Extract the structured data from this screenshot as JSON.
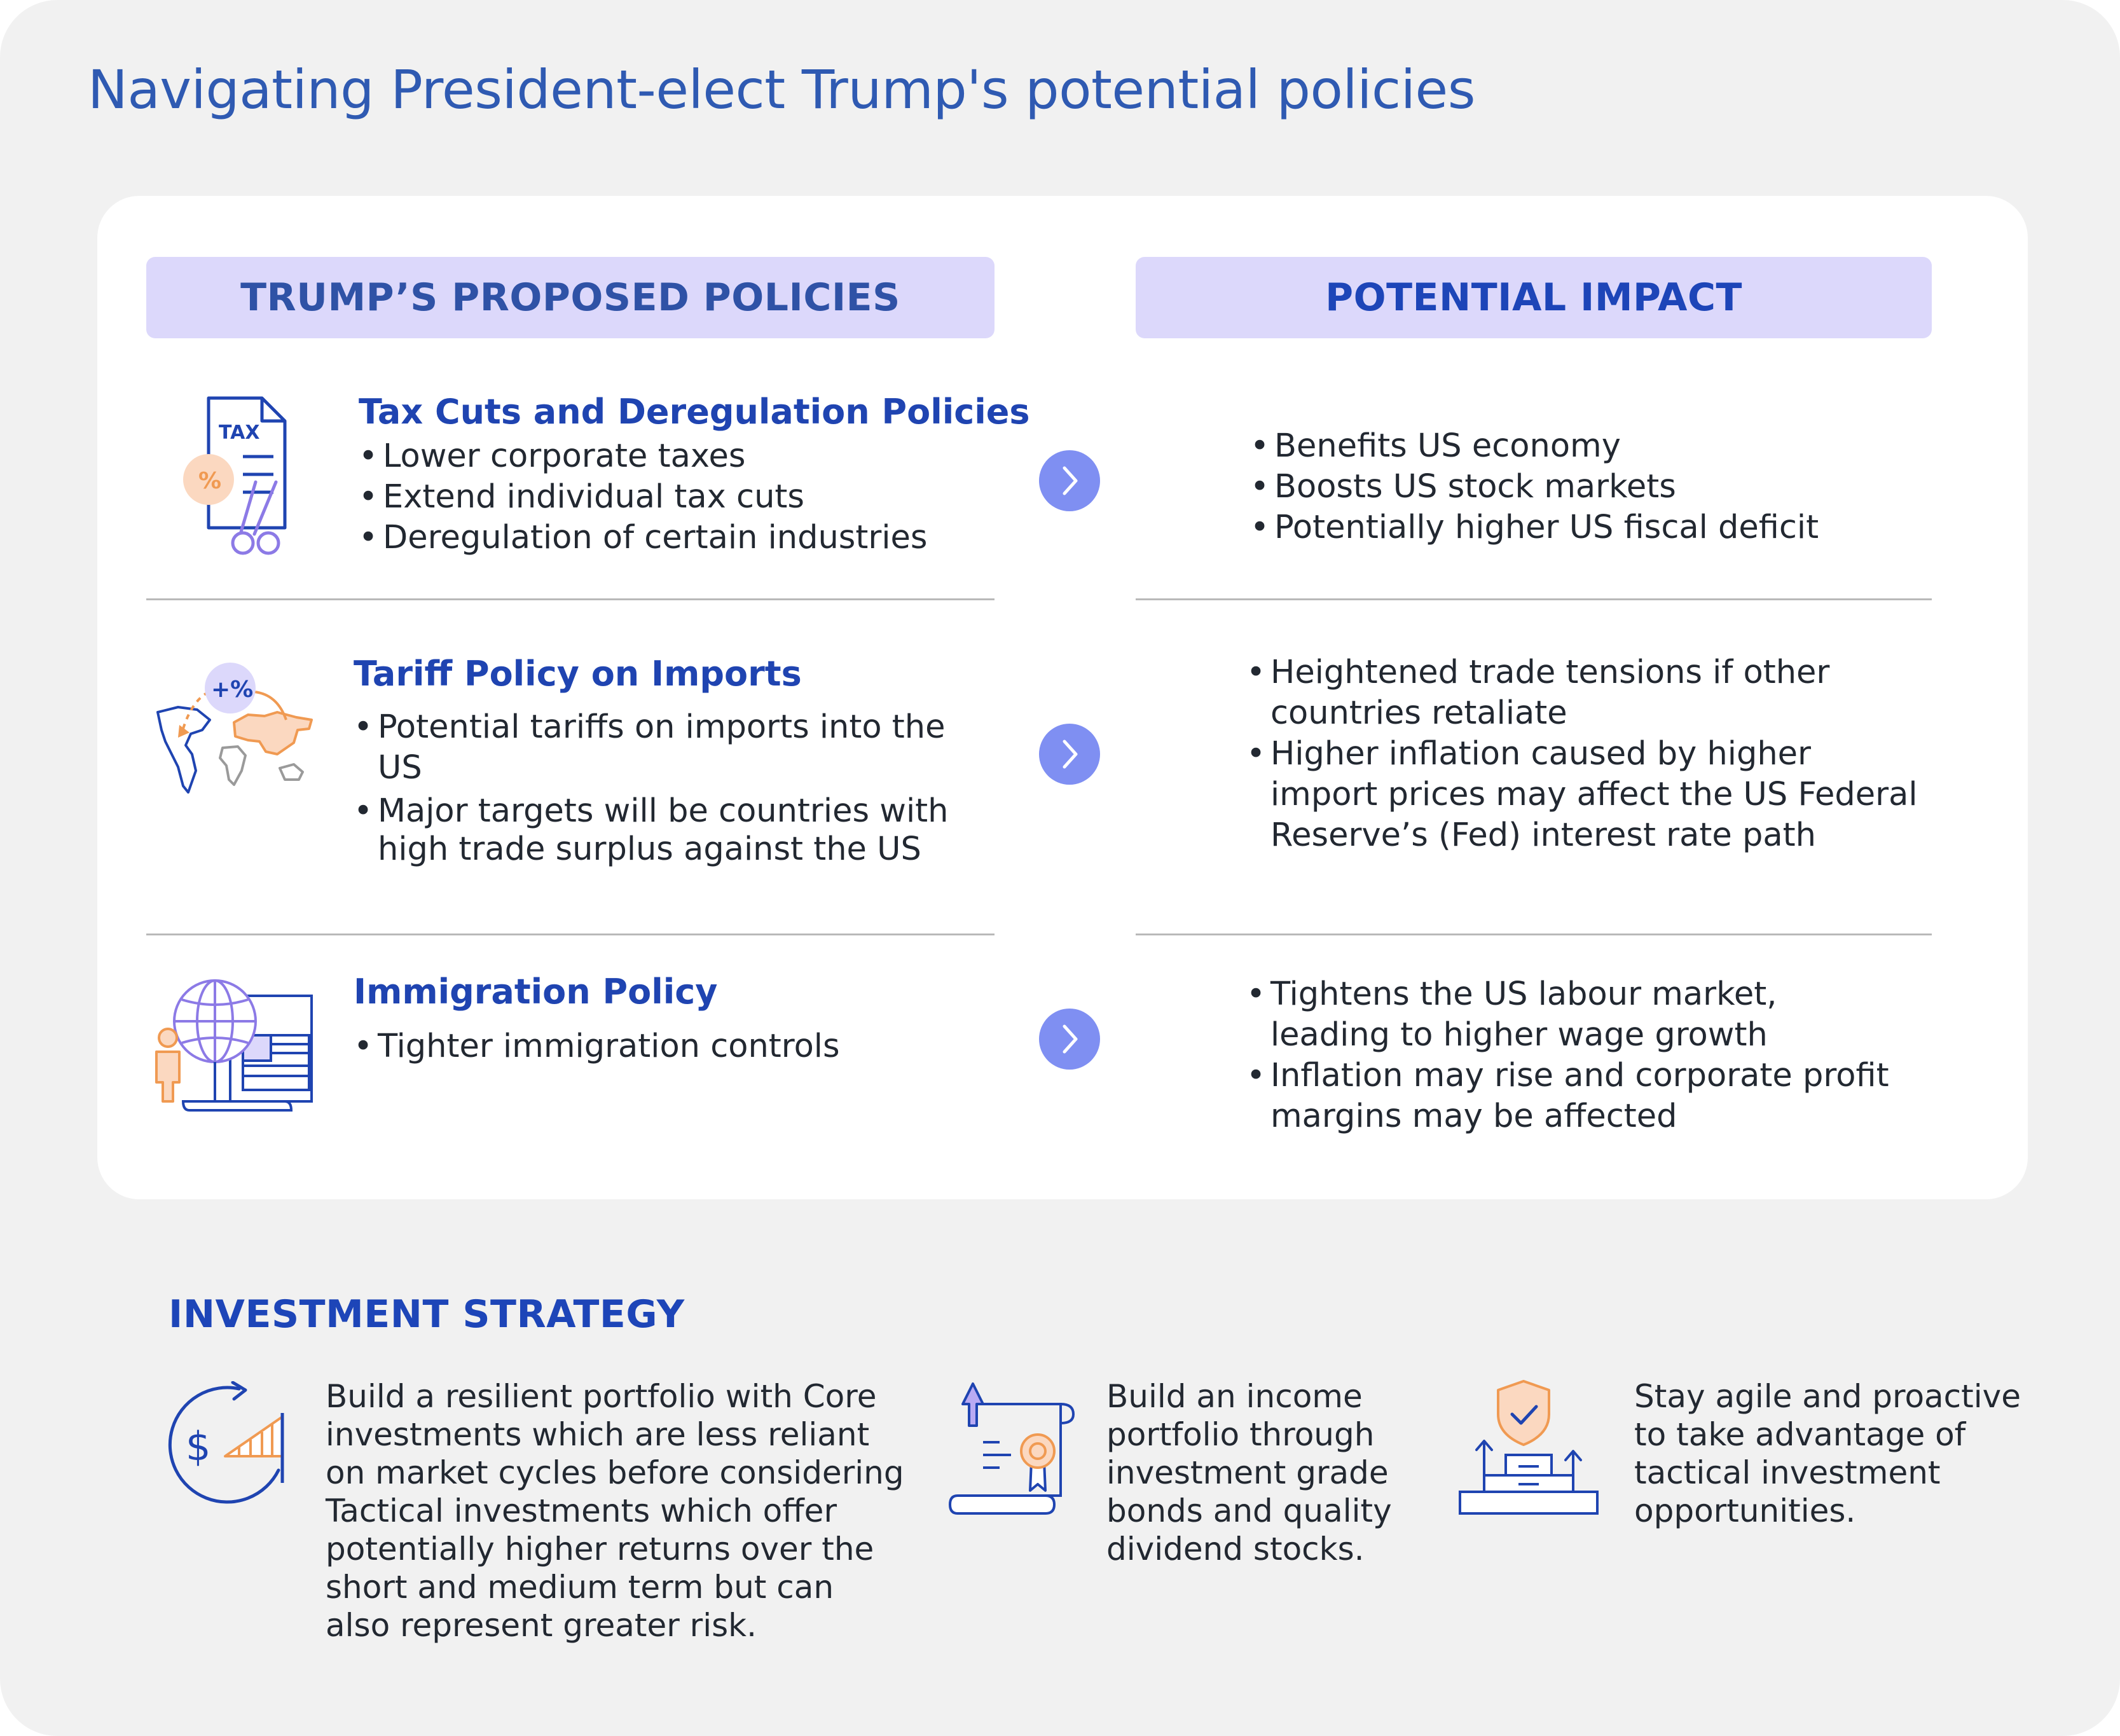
{
  "title": "Navigating President-elect Trump's potential policies",
  "headers": {
    "policies": "TRUMP’S PROPOSED POLICIES",
    "impact": "POTENTIAL IMPACT"
  },
  "rows": [
    {
      "icon": "tax-document-icon",
      "title": "Tax Cuts and Deregulation Policies",
      "icon_text": "TAX",
      "icon_percent": "%",
      "bullets": [
        "Lower corporate taxes",
        "Extend individual tax cuts",
        "Deregulation of certain industries"
      ],
      "impact": [
        "Benefits US economy",
        "Boosts US stock markets",
        "Potentially higher US fiscal deficit"
      ]
    },
    {
      "icon": "world-map-tariff-icon",
      "title": "Tariff Policy on Imports",
      "icon_text": "+%",
      "bullets": [
        "Potential tariffs on imports into the US",
        "Major targets will be countries with high trade surplus against the US"
      ],
      "impact": [
        "Heightened trade tensions if other countries retaliate",
        "Higher inflation caused by higher import prices may affect the US Federal Reserve’s (Fed) interest rate path"
      ]
    },
    {
      "icon": "immigration-globe-icon",
      "title": "Immigration Policy",
      "bullets": [
        "Tighter immigration controls"
      ],
      "impact": [
        "Tightens the US labour market, leading to higher wage growth",
        "Inflation may rise and corporate profit margins may be affected"
      ]
    }
  ],
  "strategy": {
    "title": "INVESTMENT STRATEGY",
    "items": [
      {
        "icon": "dollar-growth-cycle-icon",
        "icon_text": "$",
        "text": "Build a resilient portfolio with Core investments which are less reliant on market cycles before considering Tactical investments which offer potentially higher returns over the short and medium term but can also represent greater risk."
      },
      {
        "icon": "bond-certificate-icon",
        "text": "Build an income portfolio through investment grade bonds and quality dividend stocks."
      },
      {
        "icon": "shield-podium-icon",
        "text": "Stay agile and proactive to take advantage of tactical investment opportunities."
      }
    ]
  },
  "colors": {
    "background": "#f1f1f1",
    "header_fill": "#dcd8fb",
    "accent_blue": "#1f44b1",
    "arrow": "#7f8ff2",
    "icon_orange": "#f09a52",
    "icon_purple": "#8c7ae6"
  }
}
